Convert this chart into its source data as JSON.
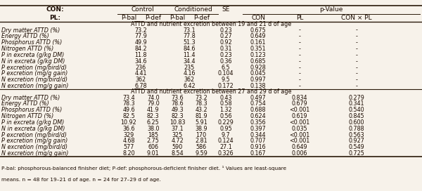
{
  "header_row1": [
    "CON:",
    "Control",
    "Conditioned",
    "SE",
    "p-Value"
  ],
  "header_row2": [
    "PL:",
    "P-bal",
    "P-def",
    "P-bal",
    "P-def",
    "",
    "CON",
    "PL",
    "CON × PL"
  ],
  "section1_title": "ATTD and nutrient excretion between 19 and 21 d of age",
  "section1_rows": [
    [
      "Dry matter ATTD (%)",
      "73.2",
      "",
      "73.1",
      "",
      "0.23",
      "0.675",
      "-",
      "-"
    ],
    [
      "Energy ATTD (%)",
      "77.9",
      "",
      "77.8",
      "",
      "0.27",
      "0.649",
      "-",
      "-"
    ],
    [
      "Phosphorus ATTD (%)",
      "49.9",
      "",
      "51.3",
      "",
      "0.92",
      "0.161",
      "-",
      "-"
    ],
    [
      "Nitrogen ATTD (%)",
      "84.2",
      "",
      "84.6",
      "",
      "0.31",
      "0.351",
      "-",
      "-"
    ],
    [
      "P in excreta (g/kg DM)",
      "11.8",
      "",
      "11.4",
      "",
      "0.23",
      "0.123",
      "-",
      "-"
    ],
    [
      "N in excreta (g/kg DM)",
      "34.6",
      "",
      "34.4",
      "",
      "0.36",
      "0.685",
      "-",
      "-"
    ],
    [
      "P excretion (mg/bird/d)",
      "236",
      "",
      "235",
      "",
      "6.5",
      "0.928",
      "-",
      "-"
    ],
    [
      "P excretion (mg/g gain)",
      "4.41",
      "",
      "4.16",
      "",
      "0.104",
      "0.045",
      "-",
      "-"
    ],
    [
      "N excretion (mg/bird/d)",
      "362",
      "",
      "362",
      "",
      "9.5",
      "0.997",
      "-",
      "-"
    ],
    [
      "N excretion (mg/g gain)",
      "6.78",
      "",
      "6.42",
      "",
      "0.172",
      "0.138",
      "-",
      "-"
    ]
  ],
  "section2_title": "ATTD and nutrient excretion between 27 and 29 d of age",
  "section2_rows": [
    [
      "Dry matter ATTD (%)",
      "73.4",
      "74.0",
      "73.6",
      "73.2",
      "0.43",
      "0.497",
      "0.834",
      "0.279"
    ],
    [
      "Energy ATTD (%)",
      "78.3",
      "79.0",
      "78.6",
      "78.3",
      "0.58",
      "0.754",
      "0.679",
      "0.341"
    ],
    [
      "Phosphorus ATTD (%)",
      "49.6",
      "41.9",
      "49.3",
      "43.2",
      "1.32",
      "0.688",
      "<0.001",
      "0.540"
    ],
    [
      "Nitrogen ATTD (%)",
      "82.5",
      "82.3",
      "82.3",
      "81.9",
      "0.56",
      "0.624",
      "0.619",
      "0.845"
    ],
    [
      "P in excreta (g/kg DM)",
      "10.92",
      "6.25",
      "10.83",
      "5.91",
      "0.229",
      "0.356",
      "<0.001",
      "0.600"
    ],
    [
      "N in excreta (g/kg DM)",
      "36.6",
      "38.0",
      "37.1",
      "38.9",
      "0.95",
      "0.397",
      "0.035",
      "0.788"
    ],
    [
      "P excretion (mg/bird/d)",
      "329",
      "185",
      "325",
      "170",
      "9.7",
      "0.344",
      "<0.001",
      "0.563"
    ],
    [
      "P excretion (mg/g gain)",
      "4.68",
      "2.75",
      "4.72",
      "2.81",
      "0.124",
      "0.707",
      "<0.001",
      "0.927"
    ],
    [
      "N excretion (mg/bird/d)",
      "577",
      "606",
      "590",
      "586",
      "27.1",
      "0.916",
      "0.649",
      "0.549"
    ],
    [
      "N excretion (mg/g gain)",
      "8.20",
      "9.01",
      "8.54",
      "9.59",
      "0.326",
      "0.167",
      "0.006",
      "0.725"
    ]
  ],
  "footnote1": "P-bal: phosphorous-balanced finisher diet; P-def: phosphorous-deficient finisher diet. ¹ Values are least-square",
  "footnote2": "means. n = 48 for 19–21 d of age. n = 24 for 27–29 d of age.",
  "bg_color": "#f7f2ea",
  "text_color": "#1a0a00",
  "line_color": "#2a1a0a"
}
